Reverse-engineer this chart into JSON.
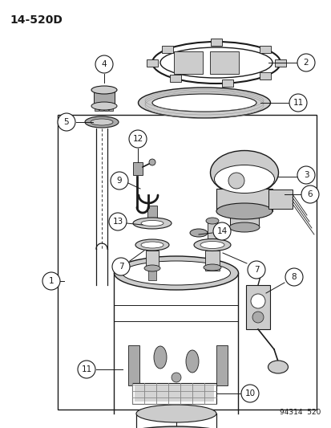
{
  "title": "14-520D",
  "bottom_right": "94314  520",
  "bg": "#ffffff",
  "dk": "#1a1a1a",
  "gray": "#888888",
  "lgray": "#cccccc",
  "mgray": "#aaaaaa"
}
